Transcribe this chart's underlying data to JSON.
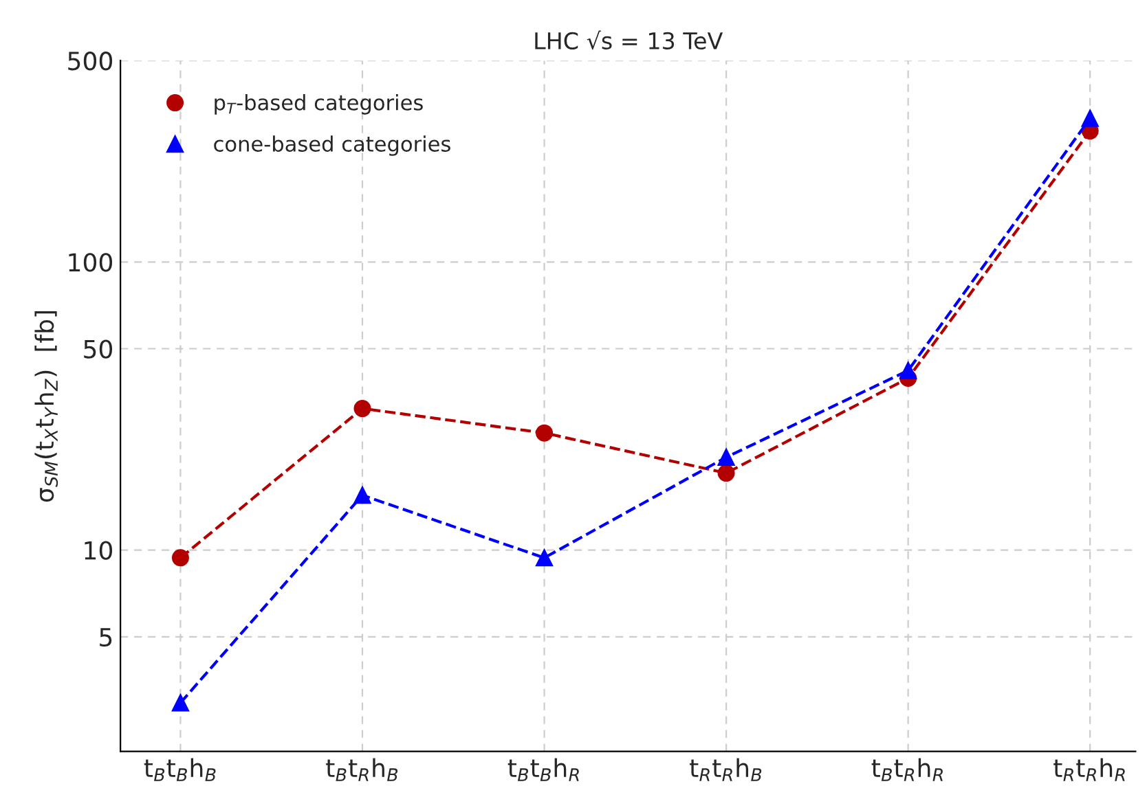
{
  "chart_data": {
    "type": "line",
    "title": "LHC √s = 13 TeV",
    "ylabel": "σ$_{SM}$(t$_{X}$t$_{Y}$h$_{Z}$)  [fb]",
    "categories": [
      "t$_{B}$t$_{B}$h$_{B}$",
      "t$_{B}$t$_{R}$h$_{B}$",
      "t$_{B}$t$_{B}$h$_{R}$",
      "t$_{R}$t$_{R}$h$_{B}$",
      "t$_{B}$t$_{R}$h$_{R}$",
      "t$_{R}$t$_{R}$h$_{R}$"
    ],
    "series": [
      {
        "name": "p$_{T}$-based categories",
        "color": "#b30000",
        "marker": "circle",
        "values": [
          9.4,
          31,
          25.5,
          18.5,
          39.5,
          285
        ]
      },
      {
        "name": "cone-based categories",
        "color": "#0000ff",
        "marker": "triangle",
        "values": [
          2.95,
          15.5,
          9.4,
          21,
          42,
          315
        ]
      }
    ],
    "log": true,
    "ylim": [
      2,
      500
    ],
    "yticks": [
      5,
      10,
      50,
      100,
      500
    ],
    "grid": true,
    "legend": "top left",
    "line_style": "dashed"
  }
}
